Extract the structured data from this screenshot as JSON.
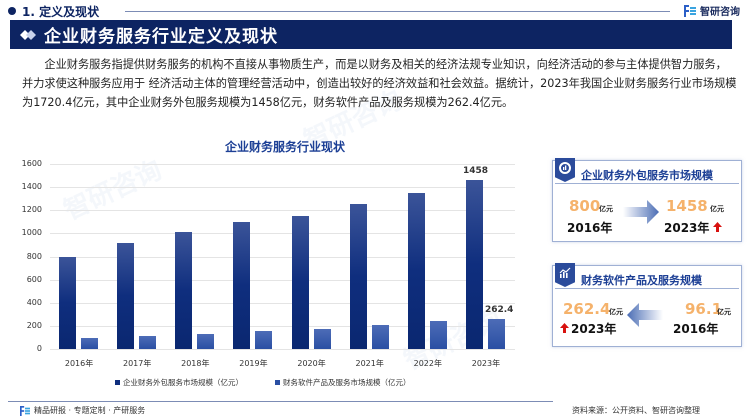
{
  "header": {
    "section_label": "1. 定义及现状",
    "brand": "智研咨询",
    "title": "企业财务服务行业定义及现状"
  },
  "paragraph": {
    "text": "企业财务服务指提供财务服务的机构不直接从事物质生产，而是以财务及相关的经济法规专业知识，向经济活动的参与主体提供智力服务，并力求使这种服务应用于 经济活动主体的管理经营活动中，创造出较好的经济效益和社会效益。据统计，2023年我国企业财务服务行业市场规模为1720.4亿元，其中企业财务外包服务规模为1458亿元，财务软件产品及服务规模为262.4亿元。"
  },
  "chart_data": {
    "type": "bar",
    "title": "企业财务服务行业现状",
    "categories": [
      "2016年",
      "2017年",
      "2018年",
      "2019年",
      "2020年",
      "2021年",
      "2022年",
      "2023年"
    ],
    "series": [
      {
        "name": "企业财务外包服务市场规模（亿元）",
        "color": "#0f2e7e",
        "values": [
          800,
          915,
          1012,
          1100,
          1148,
          1250,
          1352,
          1458
        ]
      },
      {
        "name": "财务软件产品及服务市场规模（亿元）",
        "color": "#2a4fa3",
        "values": [
          96.1,
          113,
          133,
          155,
          170,
          205,
          240,
          262.4
        ]
      }
    ],
    "data_labels": {
      "2023年": [
        "1458",
        "262.4"
      ]
    },
    "yticks": [
      "0",
      "200",
      "400",
      "600",
      "800",
      "1000",
      "1200",
      "1400",
      "1600"
    ],
    "ylim": [
      0,
      1600
    ],
    "xlabel": "",
    "ylabel": "",
    "grid": true,
    "legend_position": "bottom"
  },
  "panel_outsourcing": {
    "title": "企业财务外包服务市场规模",
    "from_value": "800",
    "from_unit": "亿元",
    "from_year": "2016年",
    "to_value": "1458",
    "to_unit": "亿元",
    "to_year": "2023年"
  },
  "panel_software": {
    "title": "财务软件产品及服务规模",
    "to_value": "262.4",
    "to_unit": "亿元",
    "to_year": "2023年",
    "from_value": "96.1",
    "from_unit": "亿元",
    "from_year": "2016年"
  },
  "footer": {
    "left": "精品研报 · 专题定制 · 产研服务",
    "right": "资料来源：公开资料、智研咨询整理"
  },
  "colors": {
    "navy": "#0d2462",
    "accent_orange": "#f5b26b",
    "up_red": "#d8120f"
  }
}
